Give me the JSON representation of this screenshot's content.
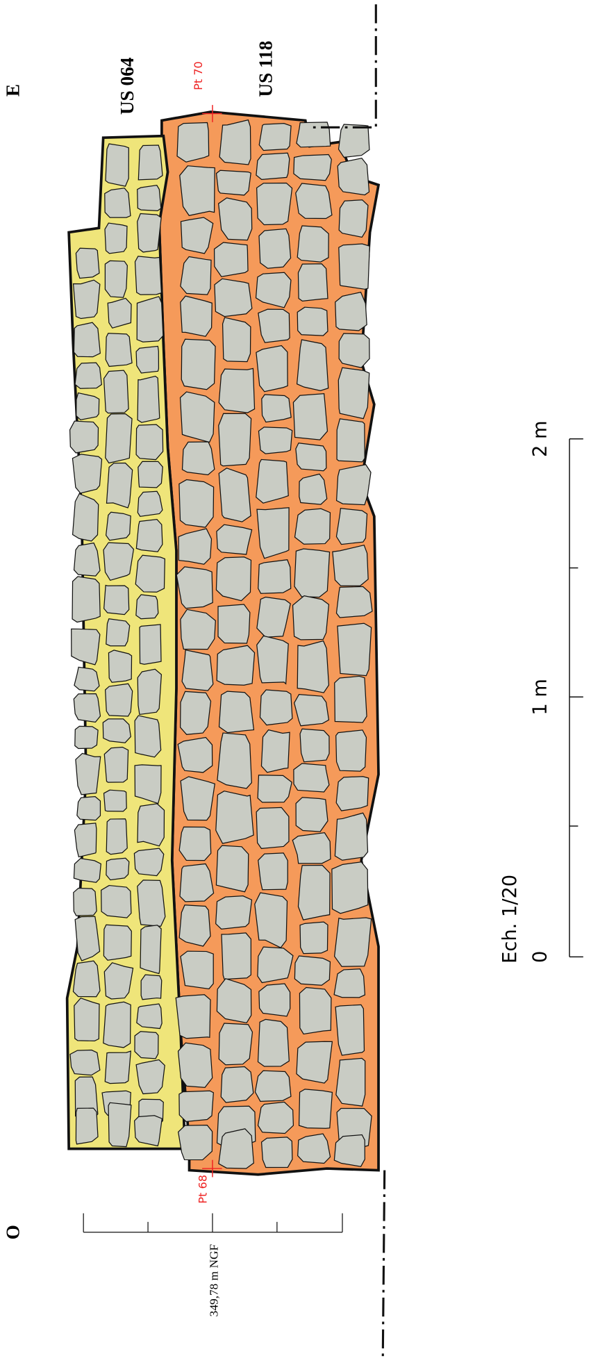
{
  "orientation": {
    "east": "E",
    "west": "O"
  },
  "units": [
    "US 064",
    "US 118"
  ],
  "points": [
    "Pt 70",
    "Pt 68"
  ],
  "elevation": "349,78 m NGF",
  "scale": {
    "title": "Ech. 1/20",
    "labels": [
      "0",
      "1 m",
      "2 m"
    ]
  }
}
